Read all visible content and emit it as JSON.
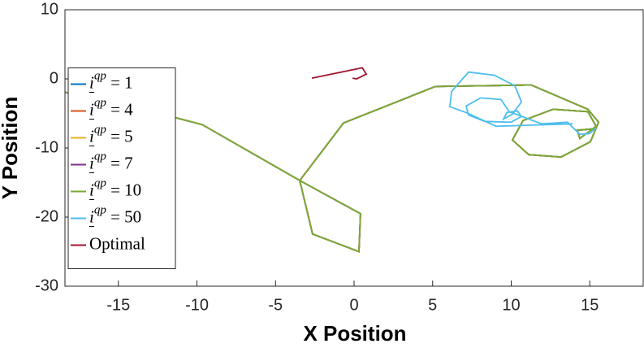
{
  "chart_data": {
    "type": "line",
    "xlabel": "X Position",
    "ylabel": "Y Position",
    "xlim": [
      -18.4,
      18.4
    ],
    "ylim": [
      -30,
      10
    ],
    "xticks": [
      -15,
      -10,
      -5,
      0,
      5,
      10,
      15
    ],
    "yticks": [
      -30,
      -20,
      -10,
      0,
      10
    ],
    "legend": "west",
    "series": [
      {
        "name": "i^qp = 1",
        "color": "#0072BD",
        "x": [
          -18.4,
          -11.47,
          -9.66,
          -3.46,
          -2.64,
          0.31,
          0.41,
          -3.46,
          -0.67,
          5.17,
          11.27,
          14.88,
          15.56,
          15.04,
          13.18,
          11.11,
          10.08,
          10.75,
          12.66,
          14.88,
          15.4,
          14.37,
          14.21,
          15.4
        ],
        "y": [
          -1.93,
          -5.57,
          -6.62,
          -14.71,
          -22.45,
          -25.0,
          -19.5,
          -14.71,
          -6.39,
          -1.11,
          -0.88,
          -4.4,
          -6.27,
          -9.09,
          -11.31,
          -10.96,
          -8.85,
          -6.04,
          -4.4,
          -4.75,
          -6.86,
          -8.62,
          -7.44,
          -7.2
        ]
      },
      {
        "name": "i^qp = 4",
        "color": "#D95319",
        "x": [
          -18.4,
          -11.47,
          -9.66,
          -3.46,
          -2.64,
          0.31,
          0.41,
          -3.46,
          -0.67,
          5.17,
          11.27,
          14.88,
          15.56,
          15.04,
          13.18,
          11.11,
          10.08,
          10.75,
          12.66,
          14.88,
          15.4,
          14.37,
          14.21,
          15.4
        ],
        "y": [
          -1.93,
          -5.57,
          -6.62,
          -14.71,
          -22.45,
          -25.0,
          -19.5,
          -14.71,
          -6.39,
          -1.11,
          -0.88,
          -4.4,
          -6.27,
          -9.09,
          -11.31,
          -10.96,
          -8.85,
          -6.04,
          -4.4,
          -4.75,
          -6.86,
          -8.62,
          -7.44,
          -7.2
        ]
      },
      {
        "name": "i^qp = 5",
        "color": "#EDB120",
        "x": [
          -18.4,
          -11.47,
          -9.66,
          -3.46,
          -2.64,
          0.31,
          0.41,
          -3.46,
          -0.67,
          5.17,
          11.27,
          14.88,
          15.56,
          15.04,
          13.18,
          11.11,
          10.08,
          10.75,
          12.66,
          14.88,
          15.4,
          14.37,
          14.21,
          15.4
        ],
        "y": [
          -1.93,
          -5.57,
          -6.62,
          -14.71,
          -22.45,
          -25.0,
          -19.5,
          -14.71,
          -6.39,
          -1.11,
          -0.88,
          -4.4,
          -6.27,
          -9.09,
          -11.31,
          -10.96,
          -8.85,
          -6.04,
          -4.4,
          -4.75,
          -6.86,
          -8.62,
          -7.44,
          -7.2
        ]
      },
      {
        "name": "i^qp = 7",
        "color": "#7E2F8E",
        "x": [
          -18.4,
          -11.47,
          -9.66,
          -3.46,
          -2.64,
          0.31,
          0.41,
          -3.46,
          -0.67,
          5.17,
          11.27,
          14.88,
          15.56,
          15.04,
          13.18,
          11.11,
          10.08,
          10.75,
          12.66,
          14.88,
          15.4,
          14.37,
          14.21,
          15.4
        ],
        "y": [
          -1.93,
          -5.57,
          -6.62,
          -14.71,
          -22.45,
          -25.0,
          -19.5,
          -14.71,
          -6.39,
          -1.11,
          -0.88,
          -4.4,
          -6.27,
          -9.09,
          -11.31,
          -10.96,
          -8.85,
          -6.04,
          -4.4,
          -4.75,
          -6.86,
          -8.62,
          -7.44,
          -7.2
        ]
      },
      {
        "name": "i^qp = 10",
        "color": "#77AC30",
        "x": [
          -18.4,
          -11.47,
          -9.66,
          -3.46,
          -2.64,
          0.31,
          0.41,
          -3.46,
          -0.67,
          5.17,
          11.27,
          14.88,
          15.56,
          15.04,
          13.18,
          11.11,
          10.08,
          10.75,
          12.66,
          14.88,
          15.4,
          14.37,
          14.21,
          15.4
        ],
        "y": [
          -1.93,
          -5.57,
          -6.62,
          -14.71,
          -22.45,
          -25.0,
          -19.5,
          -14.71,
          -6.39,
          -1.11,
          -0.88,
          -4.4,
          -6.27,
          -9.09,
          -11.31,
          -10.96,
          -8.85,
          -6.04,
          -4.4,
          -4.75,
          -6.86,
          -8.62,
          -7.44,
          -7.2
        ]
      },
      {
        "name": "i^qp = 50",
        "color": "#4DBEEE",
        "x": [
          13.9,
          9.04,
          7.13,
          6.1,
          6.2,
          7.29,
          8.94,
          10.23,
          10.65,
          10.08,
          9.51,
          9.72,
          10.39,
          10.65,
          9.98,
          8.32,
          7.29,
          7.13,
          8.06,
          9.35,
          9.87,
          11.94,
          13.59,
          14.37,
          14.99,
          15.4
        ],
        "y": [
          -6.5,
          -6.86,
          -4.87,
          -4.04,
          -1.82,
          0.99,
          0.52,
          -1.0,
          -3.34,
          -5.1,
          -5.8,
          -4.87,
          -4.63,
          -5.45,
          -6.27,
          -6.15,
          -5.22,
          -3.93,
          -2.75,
          -2.99,
          -4.75,
          -6.51,
          -6.27,
          -8.03,
          -7.91,
          -7.09
        ]
      },
      {
        "name": "Optimal",
        "color": "#A2142F",
        "x": [
          -2.69,
          0.52,
          0.78,
          0.16,
          -0.1
        ],
        "y": [
          0.1,
          1.6,
          0.7,
          0.0,
          0.1
        ]
      }
    ]
  }
}
